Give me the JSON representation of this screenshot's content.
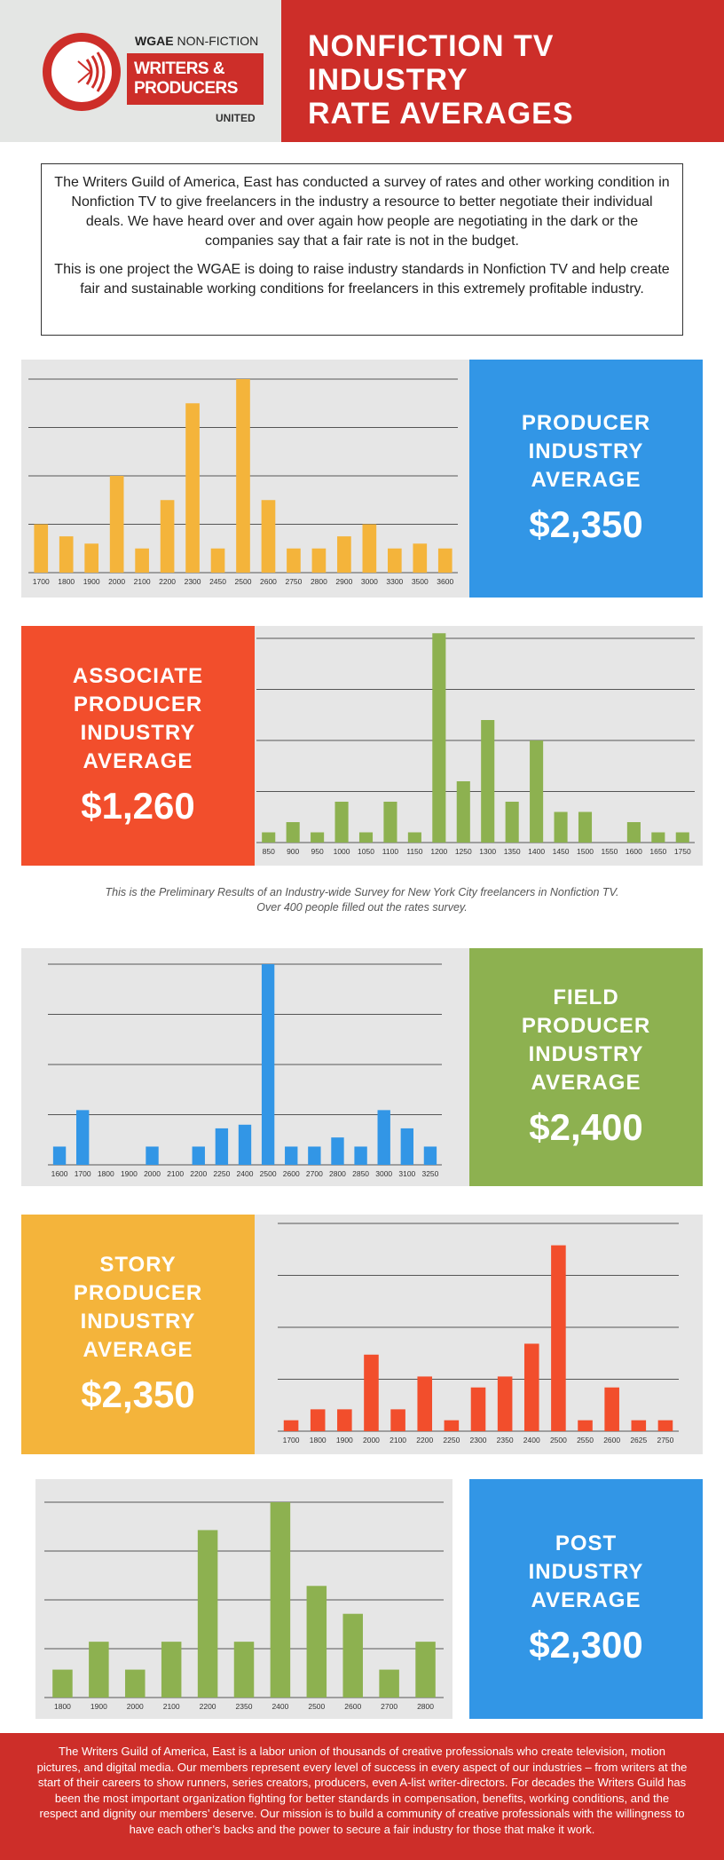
{
  "header": {
    "logo_top_bold": "WGAE",
    "logo_top_rest": "NON-FICTION",
    "logo_line1": "WRITERS &",
    "logo_line2": "PRODUCERS",
    "logo_bottom": "UNITED",
    "title_lines": [
      "NONFICTION TV",
      "INDUSTRY",
      "RATE AVERAGES"
    ]
  },
  "intro": {
    "p1": "The Writers Guild of America, East has conducted a survey of rates and other working condition in Nonfiction TV to give freelancers in the industry a resource to better negotiate their individual deals. We have heard over and over again how people are negotiating in the dark or the companies say that a fair rate is not in the budget.",
    "p2": "This is one project the WGAE is doing to raise industry standards in Nonfiction TV and help create fair and sustainable working conditions for freelancers in this extremely profitable industry."
  },
  "cards": {
    "producer": {
      "label": [
        "PRODUCER",
        "INDUSTRY",
        "AVERAGE"
      ],
      "amount": "$2,350",
      "color": "#3296e6"
    },
    "associate": {
      "label": [
        "ASSOCIATE",
        "PRODUCER",
        "INDUSTRY",
        "AVERAGE"
      ],
      "amount": "$1,260",
      "color": "#f24e2c"
    },
    "field": {
      "label": [
        "FIELD",
        "PRODUCER",
        "INDUSTRY",
        "AVERAGE"
      ],
      "amount": "$2,400",
      "color": "#8db150"
    },
    "story": {
      "label": [
        "STORY",
        "PRODUCER",
        "INDUSTRY",
        "AVERAGE"
      ],
      "amount": "$2,350",
      "color": "#f4b43b"
    },
    "post": {
      "label": [
        "POST",
        "INDUSTRY",
        "AVERAGE"
      ],
      "amount": "$2,300",
      "color": "#3296e6"
    }
  },
  "note": {
    "line1": "This is the Preliminary Results of an Industry-wide Survey for New York City freelancers in Nonfiction TV.",
    "line2": "Over 400 people filled out the rates survey."
  },
  "footer": {
    "text": "The Writers Guild of America, East is a labor union of thousands of creative professionals who create television, motion pictures, and digital media. Our members represent every level of success in every aspect of our industries – from writers at the start of their careers to show runners, series creators, producers, even A-list writer-directors. For decades the Writers Guild has been the most important organization fighting for better standards in compensation, benefits, working conditions, and the respect and dignity our members’ deserve. Our mission is to build a community of creative professionals with the willingness to have each other’s backs and the power to secure a fair industry for those that make it work."
  },
  "chart_data": [
    {
      "type": "bar",
      "categories": [
        "1700",
        "1800",
        "1900",
        "2000",
        "2100",
        "2200",
        "2300",
        "2450",
        "2500",
        "2600",
        "2750",
        "2800",
        "2900",
        "3000",
        "3300",
        "3500",
        "3600"
      ],
      "values": [
        2,
        1.5,
        1.2,
        4,
        1,
        3,
        7,
        1,
        8,
        3,
        1,
        1,
        1.5,
        2,
        1,
        1.2,
        1
      ],
      "ylim": [
        0,
        8
      ],
      "grid": true,
      "color": "#f4b43b"
    },
    {
      "type": "bar",
      "categories": [
        "850",
        "900",
        "950",
        "1000",
        "1050",
        "1100",
        "1150",
        "1200",
        "1250",
        "1300",
        "1350",
        "1400",
        "1450",
        "1500",
        "1550",
        "1600",
        "1650",
        "1750"
      ],
      "values": [
        0.4,
        0.8,
        0.4,
        1.6,
        0.4,
        1.6,
        0.4,
        8.2,
        2.4,
        4.8,
        1.6,
        4,
        1.2,
        1.2,
        0,
        0.8,
        0.4,
        0.4
      ],
      "ylim": [
        0,
        8
      ],
      "grid": true,
      "color": "#8db150"
    },
    {
      "type": "bar",
      "categories": [
        "1600",
        "1700",
        "1800",
        "1900",
        "2000",
        "2100",
        "2200",
        "2250",
        "2400",
        "2500",
        "2600",
        "2700",
        "2800",
        "2850",
        "3000",
        "3100",
        "3250"
      ],
      "values": [
        0.5,
        1.5,
        0,
        0,
        0.5,
        0,
        0.5,
        1,
        1.1,
        5.5,
        0.5,
        0.5,
        0.75,
        0.5,
        1.5,
        1,
        0.5
      ],
      "ylim": [
        0,
        5.5
      ],
      "grid": true,
      "color": "#3296e6"
    },
    {
      "type": "bar",
      "categories": [
        "1700",
        "1800",
        "1900",
        "2000",
        "2100",
        "2200",
        "2250",
        "2300",
        "2350",
        "2400",
        "2500",
        "2550",
        "2600",
        "2625",
        "2750"
      ],
      "values": [
        1,
        2,
        2,
        7,
        2,
        5,
        1,
        4,
        5,
        8,
        17,
        1,
        4,
        1,
        1
      ],
      "ylim": [
        0,
        19
      ],
      "grid": true,
      "color": "#f24e2c"
    },
    {
      "type": "bar",
      "categories": [
        "1800",
        "1900",
        "2000",
        "2100",
        "2200",
        "2350",
        "2400",
        "2500",
        "2600",
        "2700",
        "2800"
      ],
      "values": [
        1,
        2,
        1,
        2,
        6,
        2,
        7,
        4,
        3,
        1,
        2
      ],
      "ylim": [
        0,
        7
      ],
      "grid": true,
      "color": "#8db150"
    }
  ]
}
